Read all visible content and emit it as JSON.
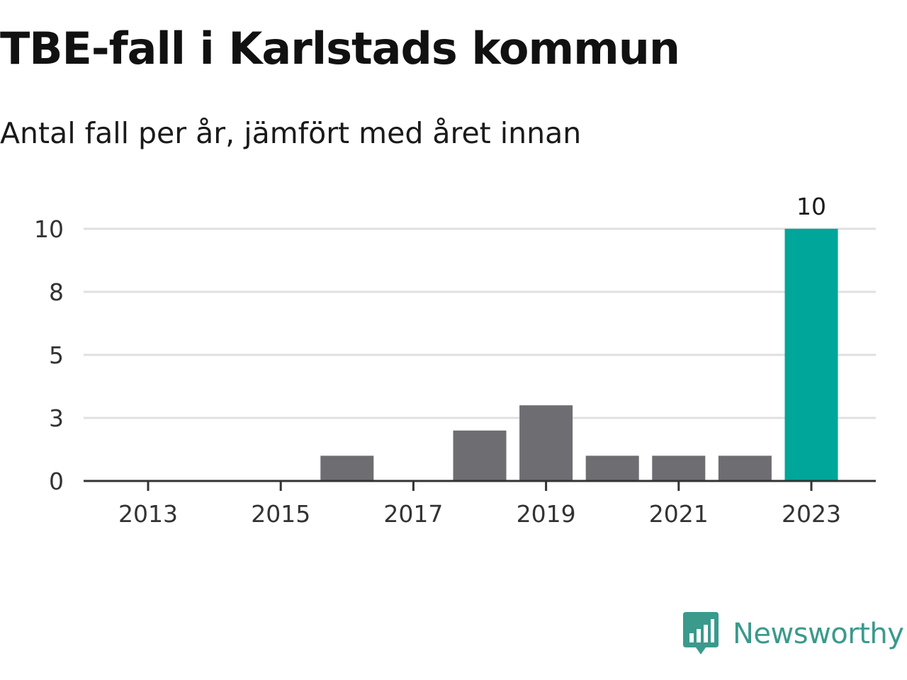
{
  "title": "TBE-fall i Karlstads kommun",
  "subtitle": "Antal fall per år, jämfört med året innan",
  "brand": {
    "name": "Newsworthy",
    "logo_icon": "bar-chart-speech-bubble-icon",
    "color": "#3a9a8c"
  },
  "colors": {
    "bar": "#6e6d72",
    "highlight": "#00a699",
    "grid": "#e0e0e0",
    "axis": "#333333"
  },
  "chart_data": {
    "type": "bar",
    "x": [
      2013,
      2014,
      2015,
      2016,
      2017,
      2018,
      2019,
      2020,
      2021,
      2022,
      2023
    ],
    "values": [
      0,
      0,
      0,
      1,
      0,
      2,
      3,
      1,
      1,
      1,
      10
    ],
    "highlight_x": 2023,
    "data_labels": [
      {
        "x": 2023,
        "text": "10"
      }
    ],
    "y_ticks": [
      0,
      2.5,
      5,
      7.5,
      10
    ],
    "y_tick_labels": [
      "0",
      "3",
      "5",
      "8",
      "10"
    ],
    "x_tick_labels": [
      "2013",
      "2015",
      "2017",
      "2019",
      "2021",
      "2023"
    ],
    "ylim": [
      0,
      10
    ],
    "grid": true,
    "legend": "none"
  }
}
